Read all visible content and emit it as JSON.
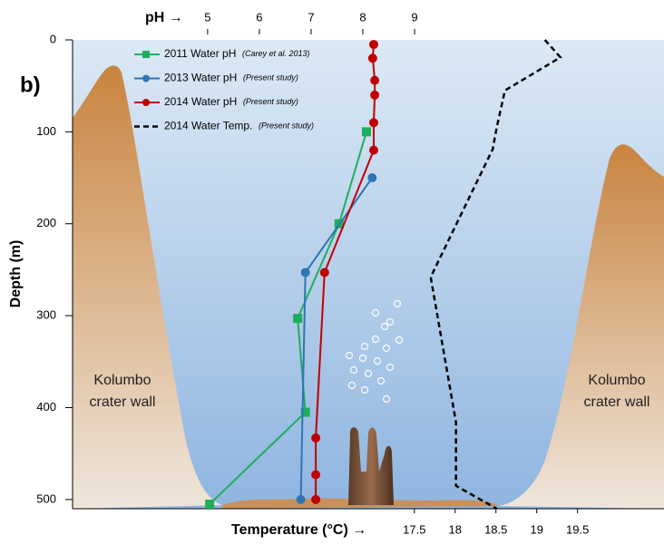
{
  "chart_data": {
    "type": "line",
    "panel_label": "b)",
    "ylabel": "Depth (m)",
    "ylim": [
      0,
      510
    ],
    "yticks": [
      0,
      100,
      200,
      300,
      400,
      500
    ],
    "xlabel": "pH →",
    "xlim": [
      2.39,
      13.82
    ],
    "xticks": [
      5,
      6,
      7,
      8,
      9
    ],
    "x2label": "Temperature (°C) →",
    "x2lim": [
      13.31,
      20.56
    ],
    "x2ticks": [
      17.5,
      18,
      18.5,
      19,
      19.5
    ],
    "annotations": [
      [
        "Kolumbo",
        "crater wall"
      ],
      [
        "Kolumbo",
        "crater wall"
      ]
    ],
    "series": [
      {
        "name": "2011 Water pH",
        "source": "(Carey et al. 2013)",
        "color": "#1fae5c",
        "marker": "square",
        "axis": "x",
        "depths": [
          100,
          200,
          303,
          405,
          505
        ],
        "values": [
          8.07,
          7.54,
          6.74,
          6.89,
          5.04
        ]
      },
      {
        "name": "2013 Water pH",
        "source": "(Present study)",
        "color": "#2e75b6",
        "marker": "circle",
        "axis": "x",
        "depths": [
          150,
          253,
          500
        ],
        "values": [
          8.18,
          6.89,
          6.8
        ]
      },
      {
        "name": "2014 Water pH",
        "source": "(Present study)",
        "color": "#c00000",
        "marker": "circle",
        "axis": "x",
        "depths": [
          5,
          20,
          44,
          60,
          90,
          120,
          253,
          433,
          473,
          500
        ],
        "values": [
          8.21,
          8.19,
          8.23,
          8.23,
          8.21,
          8.21,
          7.26,
          7.09,
          7.09,
          7.09
        ]
      },
      {
        "name": "2014 Water Temp.",
        "source": "(Present study)",
        "color": "#000000",
        "marker": "none",
        "dashed": true,
        "axis": "x2",
        "depths": [
          0,
          19,
          55,
          95,
          119,
          258,
          416,
          485,
          510
        ],
        "values": [
          19.1,
          19.29,
          18.61,
          18.51,
          18.46,
          17.7,
          18.01,
          18.01,
          18.51
        ]
      }
    ]
  }
}
